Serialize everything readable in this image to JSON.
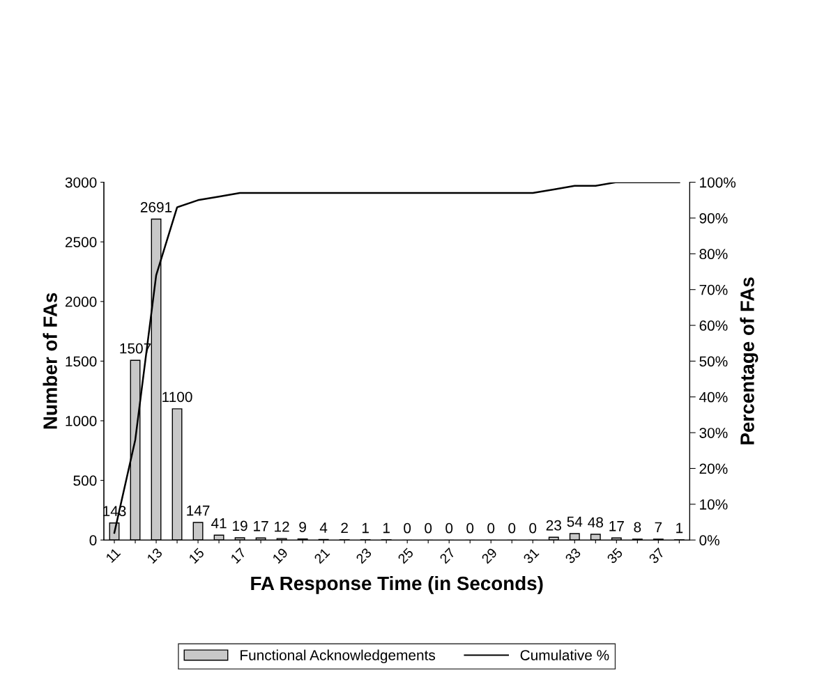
{
  "chart_data": {
    "type": "bar",
    "xlabel": "FA Response Time (in Seconds)",
    "ylabel": "Number of FAs",
    "y2label": "Percentage of FAs",
    "categories": [
      "11",
      null,
      "13",
      null,
      "15",
      null,
      "17",
      null,
      "19",
      null,
      "21",
      null,
      "23",
      null,
      "25",
      null,
      "27",
      null,
      "29",
      null,
      "31",
      null,
      "33",
      null,
      "35",
      null,
      "37",
      null
    ],
    "series": [
      {
        "name": "Functional Acknowledgements",
        "color": "#c8c8c8",
        "values": [
          143,
          1507,
          2691,
          1100,
          147,
          41,
          19,
          17,
          12,
          9,
          4,
          2,
          1,
          1,
          0,
          0,
          0,
          0,
          0,
          0,
          0,
          23,
          54,
          48,
          17,
          8,
          7,
          1
        ],
        "data_labels": true
      },
      {
        "name": "Cumulative %",
        "type": "line",
        "axis": "y2",
        "color": "#000000",
        "marker": "none",
        "values": [
          2,
          28,
          74,
          93,
          95,
          96,
          97,
          97,
          97,
          97,
          97,
          97,
          97,
          97,
          97,
          97,
          97,
          97,
          97,
          97,
          97,
          98,
          99,
          99,
          100,
          100,
          100,
          100
        ]
      }
    ],
    "ylim": [
      0,
      3000
    ],
    "yticks": [
      0,
      500,
      1000,
      1500,
      2000,
      2500,
      3000
    ],
    "y2lim": [
      0,
      100
    ],
    "y2ticks": [
      {
        "value": 0,
        "label": "0%"
      },
      {
        "value": 10,
        "label": "10%"
      },
      {
        "value": 20,
        "label": "20%"
      },
      {
        "value": 30,
        "label": "30%"
      },
      {
        "value": 40,
        "label": "40%"
      },
      {
        "value": 50,
        "label": "50%"
      },
      {
        "value": 60,
        "label": "60%"
      },
      {
        "value": 70,
        "label": "70%"
      },
      {
        "value": 80,
        "label": "80%"
      },
      {
        "value": 90,
        "label": "90%"
      },
      {
        "value": 100,
        "label": "100%"
      }
    ],
    "grid": false,
    "legend": "bottom"
  }
}
